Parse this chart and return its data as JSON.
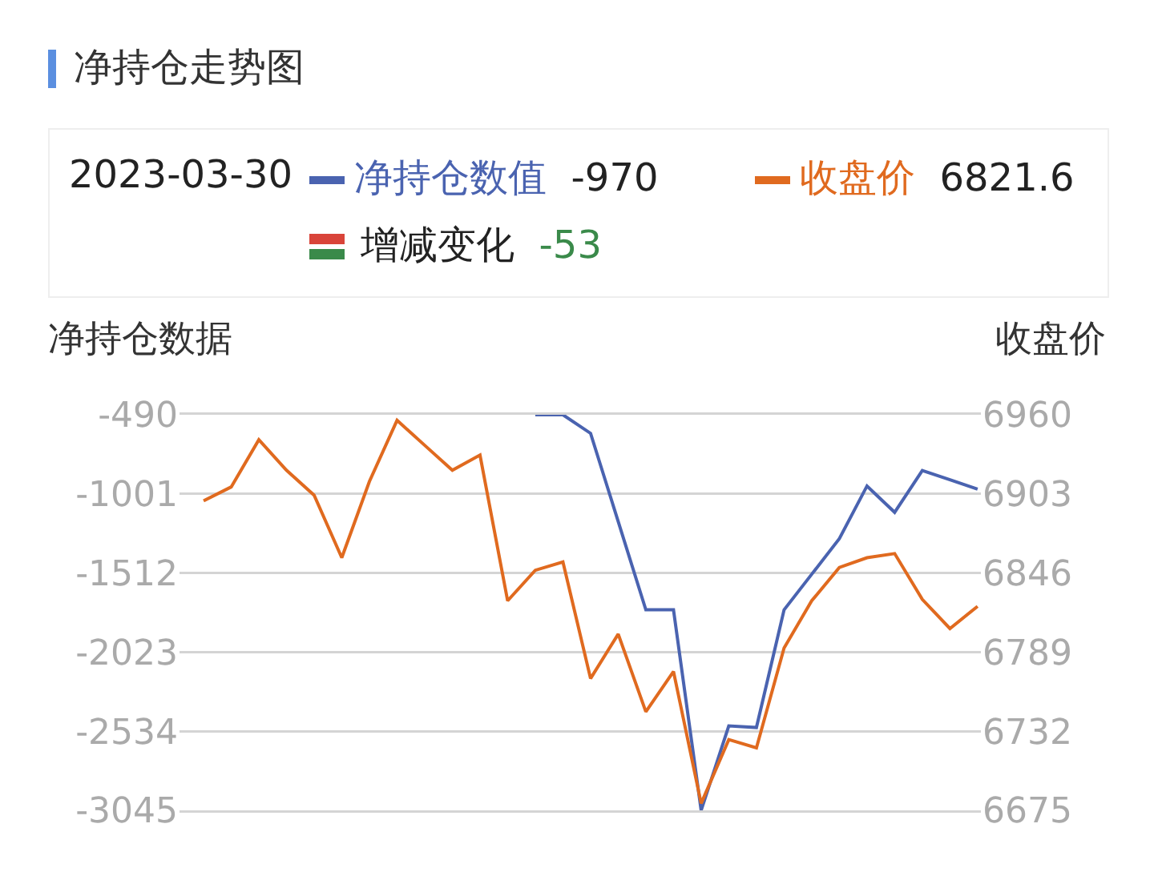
{
  "chart_data": {
    "type": "line",
    "title": "净持仓走势图",
    "ylabel": "净持仓数据",
    "y2label": "收盘价",
    "annotations": [
      "2023-03-30",
      "-970",
      "6821.6",
      "增减变化",
      "-53"
    ],
    "categories": [
      null,
      null,
      null,
      null,
      null,
      null,
      null,
      null,
      null,
      null,
      null,
      null,
      null,
      null,
      null,
      null,
      null,
      null,
      null,
      null,
      null,
      null,
      null,
      null,
      null,
      null,
      null,
      null,
      null
    ],
    "series": [
      {
        "name": "净持仓数值",
        "color": "#4a63b0",
        "values": [
          null,
          null,
          null,
          null,
          null,
          null,
          null,
          null,
          null,
          null,
          null,
          null,
          -490,
          -490,
          -610,
          -1180,
          -1750,
          -1750,
          -3045,
          -2500,
          -2510,
          -1750,
          -1520,
          -1290,
          -950,
          -1120,
          -850,
          -910,
          -970
        ]
      },
      {
        "name": "收盘价",
        "color": "#e06a1f",
        "axis": "y2",
        "values": [
          6898,
          6908,
          6942,
          6920,
          6902,
          6857,
          6912,
          6956,
          6938,
          6920,
          6931,
          6826,
          6848,
          6854,
          6770,
          6802,
          6746,
          6775,
          6680,
          6726,
          6720,
          6792,
          6826,
          6850,
          6857,
          6860,
          6827,
          6806,
          6822
        ]
      }
    ],
    "ylim": [
      -3045,
      -490
    ],
    "yticks": [
      -490,
      -1001,
      -1512,
      -2023,
      -2534,
      -3045
    ],
    "y2lim": [
      6675,
      6960
    ],
    "y2ticks": [
      6960,
      6903,
      6846,
      6789,
      6732,
      6675
    ],
    "grid": "y",
    "legend": "top",
    "marker": "none",
    "line_style": "solid"
  }
}
